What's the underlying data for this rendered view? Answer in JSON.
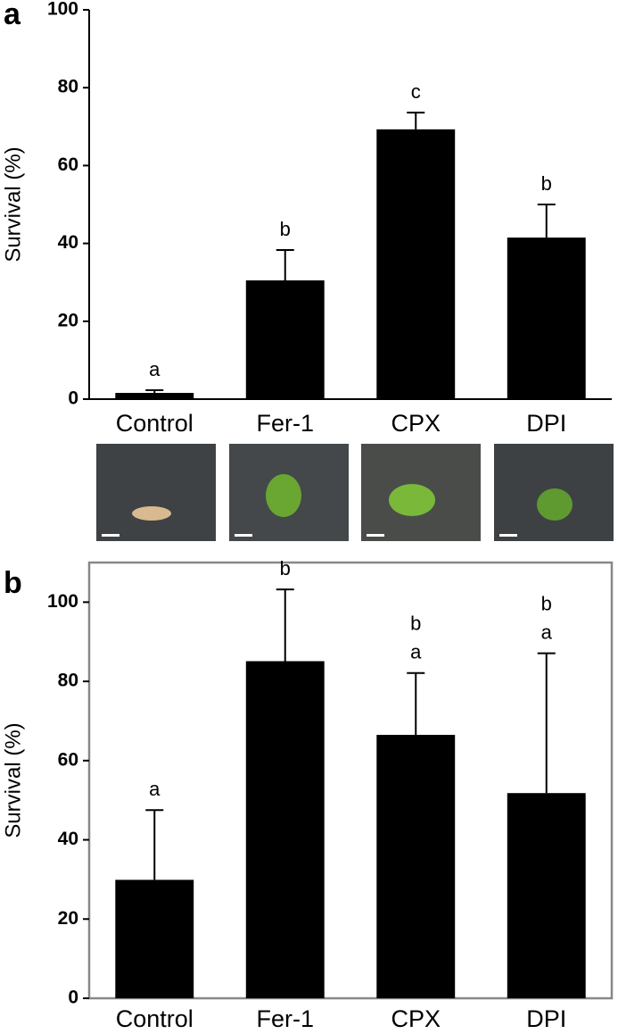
{
  "chart_data": [
    {
      "type": "bar",
      "panel_label": "a",
      "y_label": "Survival (%)",
      "categories": [
        "Control",
        "Fer-1",
        "CPX",
        "DPI"
      ],
      "values": [
        1.6,
        30.5,
        69.3,
        41.5
      ],
      "errors": [
        0.7,
        7.8,
        4.3,
        8.5
      ],
      "letters": [
        [
          "a"
        ],
        [
          "b"
        ],
        [
          "c"
        ],
        [
          "b"
        ]
      ],
      "color": "#000000",
      "ylim": [
        0,
        100
      ],
      "yticks": [
        0,
        20,
        40,
        60,
        80,
        100
      ],
      "frame": false
    },
    {
      "type": "bar",
      "panel_label": "b",
      "y_label": "Survival (%)",
      "categories": [
        "Control",
        "Fer-1",
        "CPX",
        "DPI"
      ],
      "values": [
        29.9,
        85.1,
        66.5,
        51.8
      ],
      "errors": [
        17.6,
        18.1,
        15.6,
        35.3
      ],
      "letters": [
        [
          "a"
        ],
        [
          "b"
        ],
        [
          "b",
          "a"
        ],
        [
          "b",
          "a"
        ]
      ],
      "color": "#000000",
      "ylim": [
        0,
        110
      ],
      "yticks": [
        0,
        20,
        40,
        60,
        80,
        100
      ],
      "frame": true
    }
  ]
}
